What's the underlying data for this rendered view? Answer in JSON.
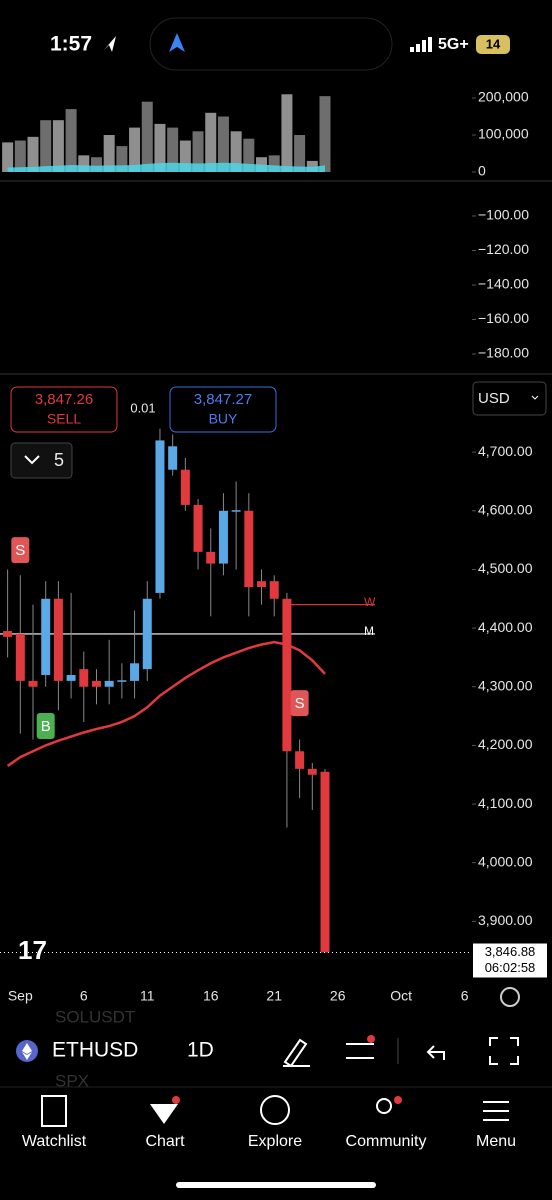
{
  "status_bar": {
    "time": "1:57",
    "network": "5G+",
    "battery": "14"
  },
  "trading": {
    "sell_price": "3,847.26",
    "sell": "SELL",
    "spread": "0.01",
    "buy_price": "3,847.27",
    "buy": "BUY",
    "quantity": "5",
    "currency": "USD"
  },
  "toolbar": {
    "symbol": "ETHUSD",
    "interval": "1D",
    "ghost": [
      "SOLUSDT",
      "SPX"
    ]
  },
  "nav": [
    "Watchlist",
    "Chart",
    "Explore",
    "Community",
    "Menu"
  ],
  "chart_data": [
    {
      "type": "bar",
      "x": [
        0,
        1,
        2,
        3,
        4,
        5,
        6,
        7,
        8,
        9,
        10,
        11,
        12,
        13,
        14,
        15,
        16,
        17,
        18,
        19,
        20,
        21,
        22,
        23,
        24,
        25
      ],
      "values": [
        80000,
        85000,
        95000,
        140000,
        140000,
        170000,
        45000,
        40000,
        100000,
        70000,
        120000,
        190000,
        130000,
        120000,
        85000,
        110000,
        160000,
        150000,
        110000,
        90000,
        40000,
        45000,
        210000,
        100000,
        30000,
        205000
      ],
      "color": "#8f8f8f",
      "area": {
        "color": "#4fd6e8",
        "values": [
          12000,
          13000,
          14000,
          16000,
          17000,
          19000,
          18000,
          17000,
          18000,
          18000,
          19000,
          22000,
          24000,
          25000,
          24000,
          23000,
          24000,
          25000,
          24000,
          22000,
          20000,
          18000,
          16000,
          15000,
          14000,
          18000
        ]
      },
      "xlim": [
        -0.6,
        36.5
      ],
      "ylim": [
        0,
        227000
      ],
      "yticks": [
        {
          "value": 200000,
          "label": "200,000"
        },
        {
          "value": 100000,
          "label": "100,000"
        },
        0
      ]
    },
    {
      "type": "line",
      "ylim": [
        -191.6,
        -80.3
      ],
      "yticks": [
        {
          "value": -100,
          "label": "−100.00"
        },
        {
          "value": -120,
          "label": "−120.00"
        },
        {
          "value": -140,
          "label": "−140.00"
        },
        {
          "value": -160,
          "label": "−160.00"
        },
        {
          "value": -180,
          "label": "−180.00"
        }
      ]
    },
    {
      "type": "candlestick",
      "x": [
        0,
        1,
        2,
        3,
        4,
        5,
        6,
        7,
        8,
        9,
        10,
        11,
        12,
        13,
        14,
        15,
        16,
        17,
        18,
        19,
        20,
        21,
        22,
        23,
        24,
        25
      ],
      "open": [
        4395,
        4390,
        4310,
        4320,
        4450,
        4310,
        4330,
        4310,
        4300,
        4310,
        4310,
        4330,
        4460,
        4670,
        4670,
        4610,
        4530,
        4510,
        4600,
        4600,
        4480,
        4480,
        4450,
        4190,
        4160,
        4155
      ],
      "high": [
        4500,
        4490,
        4440,
        4480,
        4480,
        4460,
        4360,
        4330,
        4380,
        4340,
        4430,
        4480,
        4740,
        4730,
        4690,
        4620,
        4570,
        4630,
        4650,
        4630,
        4500,
        4490,
        4460,
        4210,
        4170,
        4160
      ],
      "low": [
        4350,
        4220,
        4210,
        4300,
        4260,
        4280,
        4240,
        4270,
        4270,
        4280,
        4280,
        4310,
        4450,
        4660,
        4600,
        4500,
        4420,
        4490,
        4500,
        4420,
        4440,
        4420,
        4060,
        4110,
        4090,
        3847
      ],
      "close": [
        4385,
        4310,
        4300,
        4450,
        4310,
        4320,
        4300,
        4300,
        4310,
        4311,
        4340,
        4450,
        4720,
        4710,
        4610,
        4530,
        4510,
        4600,
        4601,
        4470,
        4470,
        4450,
        4190,
        4160,
        4150,
        3847
      ],
      "up_color": "#5aa8e6",
      "down_color": "#e0393e",
      "lines": [
        {
          "color": "#e0393e",
          "values": [
            4165,
            4180,
            4190,
            4200,
            4208,
            4215,
            4222,
            4228,
            4233,
            4240,
            4250,
            4265,
            4285,
            4300,
            4315,
            4328,
            4340,
            4350,
            4358,
            4366,
            4372,
            4376,
            4372,
            4362,
            4345,
            4322
          ]
        }
      ],
      "levels": [
        {
          "label": "W",
          "value": 4440,
          "color": "#d03a3a"
        },
        {
          "label": "M",
          "value": 4390,
          "color": "#ffffff"
        }
      ],
      "markers": [
        {
          "label": "S",
          "x": 1,
          "y": 4533,
          "color": "#e05555"
        },
        {
          "label": "B",
          "x": 3,
          "y": 4233,
          "color": "#4caf50"
        },
        {
          "label": "S",
          "x": 23,
          "y": 4272,
          "color": "#e05555"
        }
      ],
      "last_price": {
        "value": 3846.88,
        "label": "3,846.88",
        "countdown": "06:02:58"
      },
      "xlim": [
        -0.6,
        36.5
      ],
      "xticks": [
        {
          "value": 1,
          "label": "Sep"
        },
        6,
        11,
        16,
        21,
        26,
        {
          "value": 31,
          "label": "Oct"
        },
        {
          "value": 36,
          "label": "6"
        }
      ],
      "ylim": [
        3800,
        4823
      ],
      "yticks": [
        {
          "value": 4700,
          "label": "4,700.00"
        },
        {
          "value": 4600,
          "label": "4,600.00"
        },
        {
          "value": 4500,
          "label": "4,500.00"
        },
        {
          "value": 4400,
          "label": "4,400.00"
        },
        {
          "value": 4300,
          "label": "4,300.00"
        },
        {
          "value": 4200,
          "label": "4,200.00"
        },
        {
          "value": 4100,
          "label": "4,100.00"
        },
        {
          "value": 4000,
          "label": "4,000.00"
        },
        {
          "value": 3900,
          "label": "3,900.00"
        }
      ]
    }
  ]
}
